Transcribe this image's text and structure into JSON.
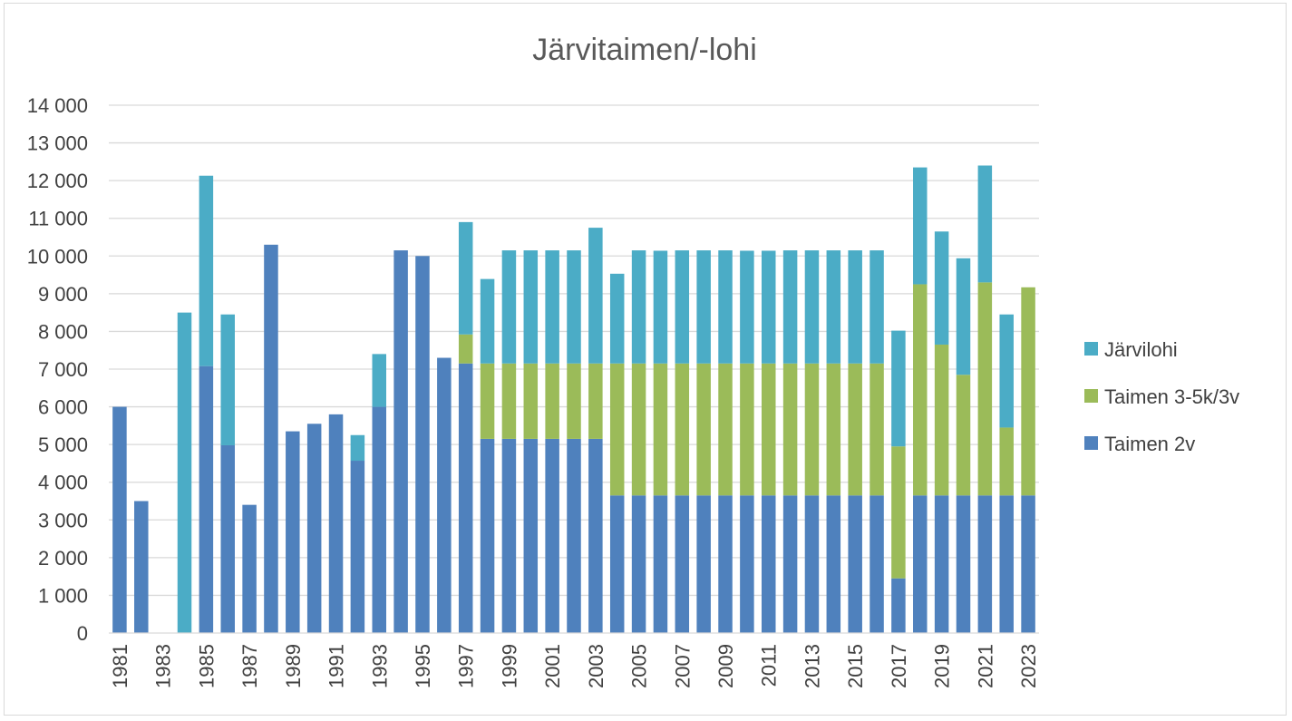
{
  "chart_data": {
    "type": "bar",
    "stacked": true,
    "title": "Järvitaimen/-lohi",
    "xlabel": "",
    "ylabel": "",
    "ylim": [
      0,
      14000
    ],
    "y_ticks": [
      "0",
      "1 000",
      "2 000",
      "3 000",
      "4 000",
      "5 000",
      "6 000",
      "7 000",
      "8 000",
      "9 000",
      "10 000",
      "11 000",
      "12 000",
      "13 000",
      "14 000"
    ],
    "grid": true,
    "legend_position": "right",
    "categories": [
      "1981",
      "1982",
      "1983",
      "1984",
      "1985",
      "1986",
      "1987",
      "1988",
      "1989",
      "1990",
      "1991",
      "1992",
      "1993",
      "1994",
      "1995",
      "1996",
      "1997",
      "1998",
      "1999",
      "2000",
      "2001",
      "2002",
      "2003",
      "2004",
      "2005",
      "2006",
      "2007",
      "2008",
      "2009",
      "2010",
      "2011",
      "2012",
      "2013",
      "2014",
      "2015",
      "2016",
      "2017",
      "2018",
      "2019",
      "2020",
      "2021",
      "2022",
      "2023"
    ],
    "x_tick_labels": [
      "1981",
      "1983",
      "1985",
      "1987",
      "1989",
      "1991",
      "1993",
      "1995",
      "1997",
      "1999",
      "2001",
      "2003",
      "2005",
      "2007",
      "2009",
      "2011",
      "2013",
      "2015",
      "2017",
      "2019",
      "2021",
      "2023"
    ],
    "series": [
      {
        "name": "Taimen 2v",
        "color": "#4f81bd",
        "values": [
          6000,
          3500,
          0,
          0,
          7080,
          4980,
          3400,
          10300,
          5350,
          5550,
          5800,
          4570,
          6000,
          10150,
          10000,
          7300,
          7150,
          5150,
          5150,
          5150,
          5150,
          5150,
          5150,
          3650,
          3650,
          3650,
          3650,
          3650,
          3650,
          3650,
          3650,
          3650,
          3650,
          3650,
          3650,
          3650,
          1450,
          3650,
          3650,
          3650,
          3650,
          3650,
          3650
        ]
      },
      {
        "name": "Taimen 3-5k/3v",
        "color": "#9bbb59",
        "values": [
          0,
          0,
          0,
          0,
          0,
          0,
          0,
          0,
          0,
          0,
          0,
          0,
          0,
          0,
          0,
          0,
          770,
          2000,
          2000,
          2000,
          2000,
          2000,
          2000,
          3500,
          3500,
          3500,
          3500,
          3500,
          3500,
          3500,
          3500,
          3500,
          3500,
          3500,
          3500,
          3500,
          3500,
          5600,
          4000,
          3200,
          5650,
          1800,
          5520
        ]
      },
      {
        "name": "Järvilohi",
        "color": "#4bacc6",
        "values": [
          0,
          0,
          0,
          8500,
          5050,
          3470,
          0,
          0,
          0,
          0,
          0,
          680,
          1400,
          0,
          0,
          0,
          2980,
          2240,
          3000,
          3000,
          3000,
          3000,
          3600,
          2380,
          3000,
          2990,
          3000,
          3000,
          3000,
          2990,
          2990,
          3000,
          3000,
          3000,
          3000,
          3000,
          3070,
          3100,
          3000,
          3090,
          3100,
          3000,
          0
        ]
      }
    ],
    "legend_order": [
      "Järvilohi",
      "Taimen 3-5k/3v",
      "Taimen 2v"
    ]
  }
}
